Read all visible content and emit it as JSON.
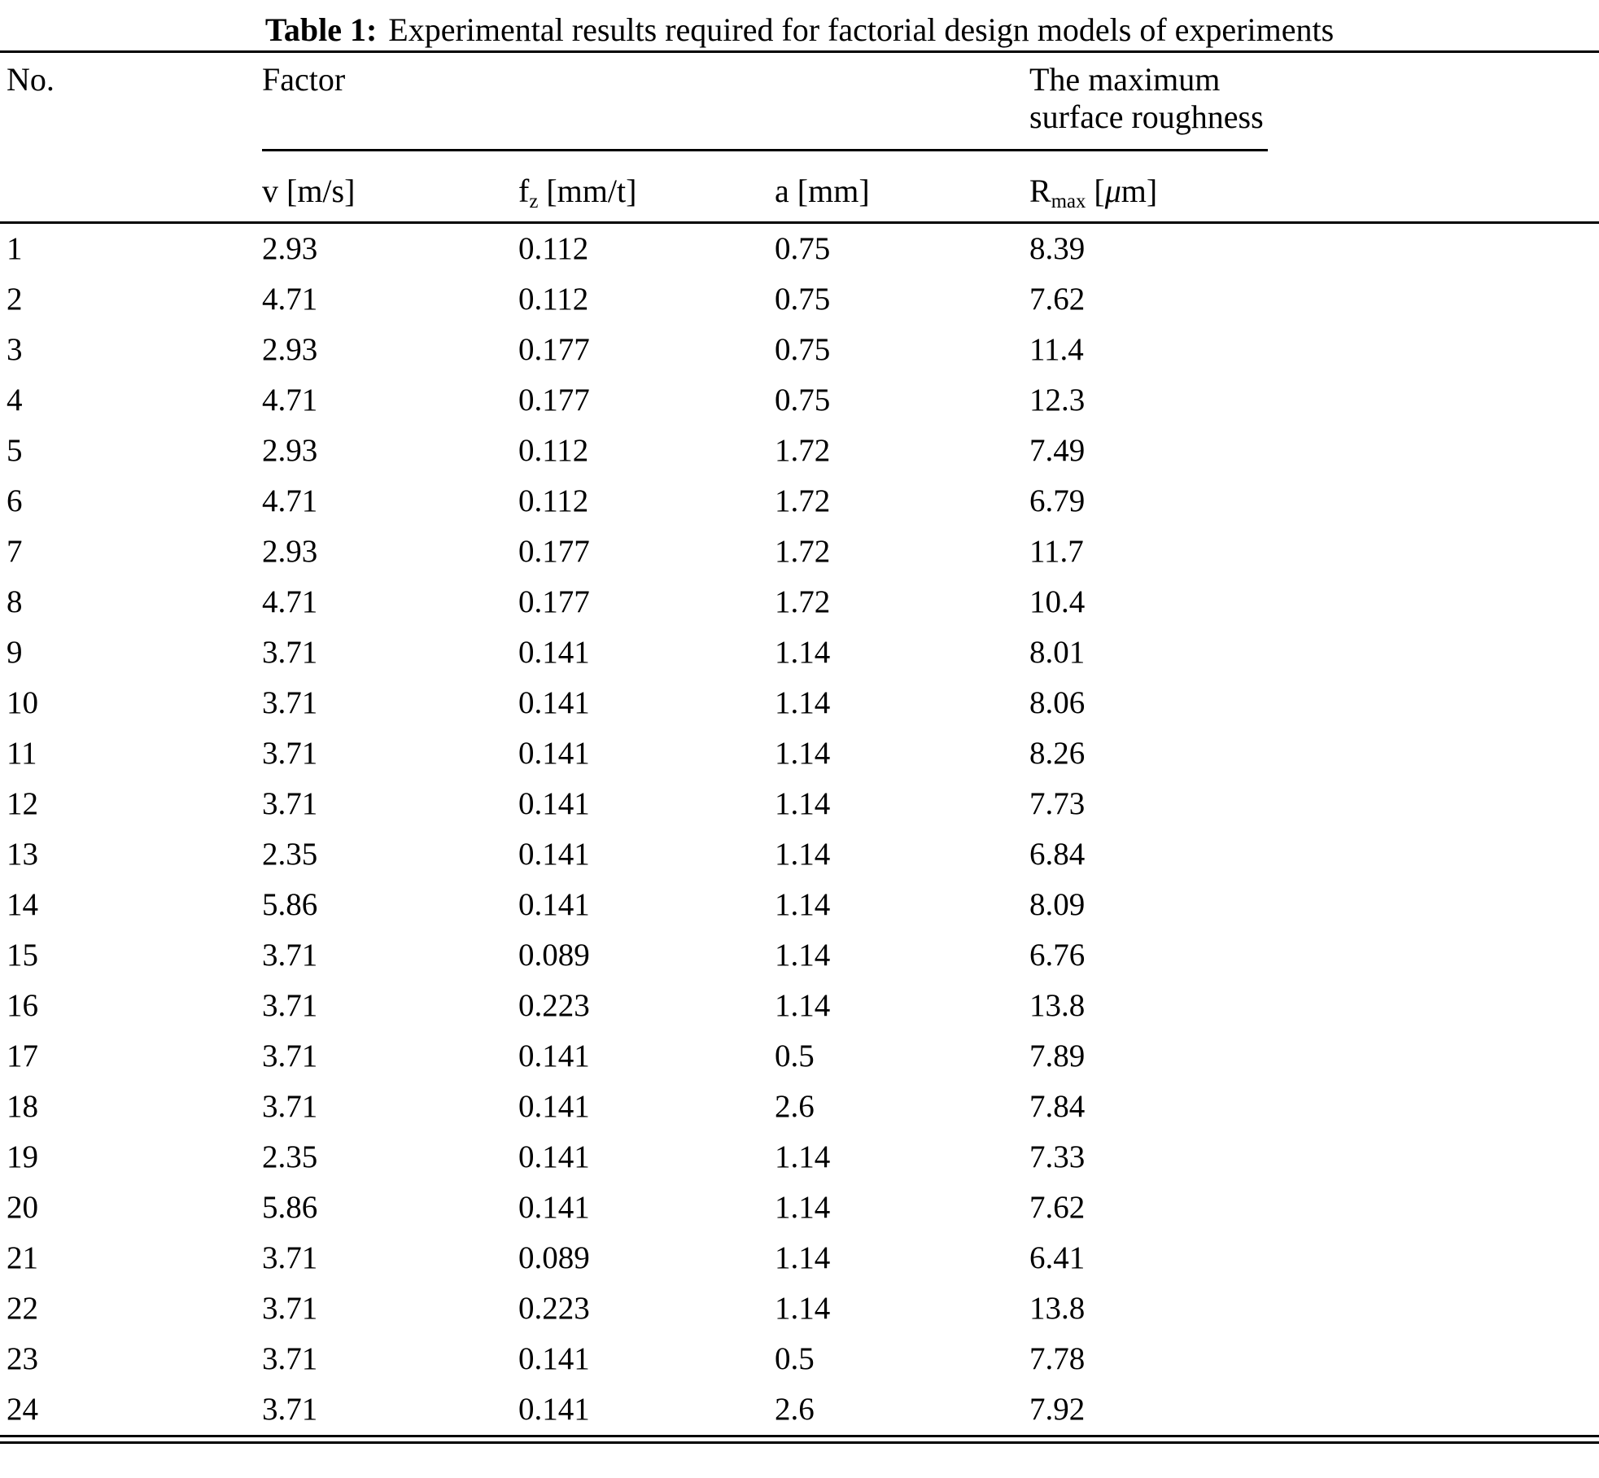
{
  "title": {
    "label": "Table 1:",
    "text": "Experimental results required for factorial design models of experiments"
  },
  "table": {
    "header": {
      "no": "No.",
      "factor_group": "Factor",
      "roughness_group": "The maximum surface roughness",
      "columns": [
        {
          "base": "v",
          "sub": "",
          "unit_pre": " [m/s]",
          "mu": "",
          "unit_post": ""
        },
        {
          "base": "f",
          "sub": "z",
          "unit_pre": " [mm/t]",
          "mu": "",
          "unit_post": ""
        },
        {
          "base": "a",
          "sub": "",
          "unit_pre": " [mm]",
          "mu": "",
          "unit_post": ""
        },
        {
          "base": "R",
          "sub": "max",
          "unit_pre": " [",
          "mu": "μ",
          "unit_post": "m]"
        }
      ]
    },
    "rows": [
      {
        "no": "1",
        "v": "2.93",
        "fz": "0.112",
        "a": "0.75",
        "rmax": "8.39"
      },
      {
        "no": "2",
        "v": "4.71",
        "fz": "0.112",
        "a": "0.75",
        "rmax": "7.62"
      },
      {
        "no": "3",
        "v": "2.93",
        "fz": "0.177",
        "a": "0.75",
        "rmax": "11.4"
      },
      {
        "no": "4",
        "v": "4.71",
        "fz": "0.177",
        "a": "0.75",
        "rmax": "12.3"
      },
      {
        "no": "5",
        "v": "2.93",
        "fz": "0.112",
        "a": "1.72",
        "rmax": "7.49"
      },
      {
        "no": "6",
        "v": "4.71",
        "fz": "0.112",
        "a": "1.72",
        "rmax": "6.79"
      },
      {
        "no": "7",
        "v": "2.93",
        "fz": "0.177",
        "a": "1.72",
        "rmax": "11.7"
      },
      {
        "no": "8",
        "v": "4.71",
        "fz": "0.177",
        "a": "1.72",
        "rmax": "10.4"
      },
      {
        "no": "9",
        "v": "3.71",
        "fz": "0.141",
        "a": "1.14",
        "rmax": "8.01"
      },
      {
        "no": "10",
        "v": "3.71",
        "fz": "0.141",
        "a": "1.14",
        "rmax": "8.06"
      },
      {
        "no": "11",
        "v": "3.71",
        "fz": "0.141",
        "a": "1.14",
        "rmax": "8.26"
      },
      {
        "no": "12",
        "v": "3.71",
        "fz": "0.141",
        "a": "1.14",
        "rmax": "7.73"
      },
      {
        "no": "13",
        "v": "2.35",
        "fz": "0.141",
        "a": "1.14",
        "rmax": "6.84"
      },
      {
        "no": "14",
        "v": "5.86",
        "fz": "0.141",
        "a": "1.14",
        "rmax": "8.09"
      },
      {
        "no": "15",
        "v": "3.71",
        "fz": "0.089",
        "a": "1.14",
        "rmax": "6.76"
      },
      {
        "no": "16",
        "v": "3.71",
        "fz": "0.223",
        "a": "1.14",
        "rmax": "13.8"
      },
      {
        "no": "17",
        "v": "3.71",
        "fz": "0.141",
        "a": "0.5",
        "rmax": "7.89"
      },
      {
        "no": "18",
        "v": "3.71",
        "fz": "0.141",
        "a": "2.6",
        "rmax": "7.84"
      },
      {
        "no": "19",
        "v": "2.35",
        "fz": "0.141",
        "a": "1.14",
        "rmax": "7.33"
      },
      {
        "no": "20",
        "v": "5.86",
        "fz": "0.141",
        "a": "1.14",
        "rmax": "7.62"
      },
      {
        "no": "21",
        "v": "3.71",
        "fz": "0.089",
        "a": "1.14",
        "rmax": "6.41"
      },
      {
        "no": "22",
        "v": "3.71",
        "fz": "0.223",
        "a": "1.14",
        "rmax": "13.8"
      },
      {
        "no": "23",
        "v": "3.71",
        "fz": "0.141",
        "a": "0.5",
        "rmax": "7.78"
      },
      {
        "no": "24",
        "v": "3.71",
        "fz": "0.141",
        "a": "2.6",
        "rmax": "7.92"
      }
    ]
  },
  "chart_data": {
    "type": "table",
    "title": "Table 1: Experimental results required for factorial design models of experiments",
    "columns": [
      "No.",
      "v [m/s]",
      "fz [mm/t]",
      "a [mm]",
      "Rmax [um]"
    ],
    "rows": [
      [
        1,
        2.93,
        0.112,
        0.75,
        8.39
      ],
      [
        2,
        4.71,
        0.112,
        0.75,
        7.62
      ],
      [
        3,
        2.93,
        0.177,
        0.75,
        11.4
      ],
      [
        4,
        4.71,
        0.177,
        0.75,
        12.3
      ],
      [
        5,
        2.93,
        0.112,
        1.72,
        7.49
      ],
      [
        6,
        4.71,
        0.112,
        1.72,
        6.79
      ],
      [
        7,
        2.93,
        0.177,
        1.72,
        11.7
      ],
      [
        8,
        4.71,
        0.177,
        1.72,
        10.4
      ],
      [
        9,
        3.71,
        0.141,
        1.14,
        8.01
      ],
      [
        10,
        3.71,
        0.141,
        1.14,
        8.06
      ],
      [
        11,
        3.71,
        0.141,
        1.14,
        8.26
      ],
      [
        12,
        3.71,
        0.141,
        1.14,
        7.73
      ],
      [
        13,
        2.35,
        0.141,
        1.14,
        6.84
      ],
      [
        14,
        5.86,
        0.141,
        1.14,
        8.09
      ],
      [
        15,
        3.71,
        0.089,
        1.14,
        6.76
      ],
      [
        16,
        3.71,
        0.223,
        1.14,
        13.8
      ],
      [
        17,
        3.71,
        0.141,
        0.5,
        7.89
      ],
      [
        18,
        3.71,
        0.141,
        2.6,
        7.84
      ],
      [
        19,
        2.35,
        0.141,
        1.14,
        7.33
      ],
      [
        20,
        5.86,
        0.141,
        1.14,
        7.62
      ],
      [
        21,
        3.71,
        0.089,
        1.14,
        6.41
      ],
      [
        22,
        3.71,
        0.223,
        1.14,
        13.8
      ],
      [
        23,
        3.71,
        0.141,
        0.5,
        7.78
      ],
      [
        24,
        3.71,
        0.141,
        2.6,
        7.92
      ]
    ]
  }
}
